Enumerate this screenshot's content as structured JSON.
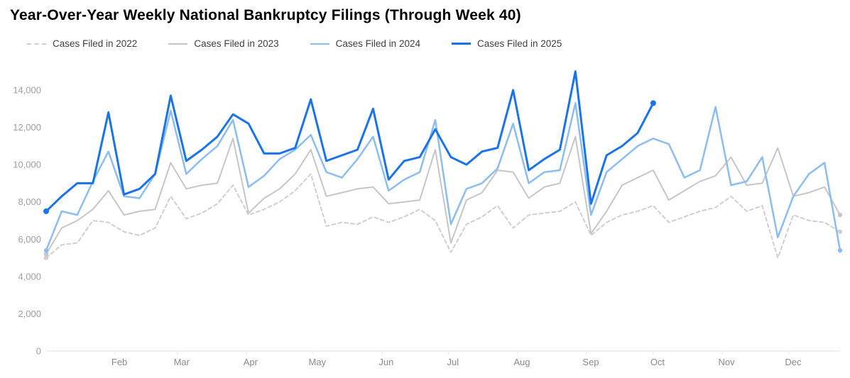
{
  "title": "Year-Over-Year Weekly National Bankruptcy Filings (Through Week 40)",
  "chart_data": {
    "type": "line",
    "title": "Year-Over-Year Weekly National Bankruptcy Filings (Through Week 40)",
    "x_unit": "week_of_year",
    "weeks": 52,
    "legend_position": "top-left",
    "grid": "baseline-only",
    "x_axis": {
      "month_labels": [
        "Feb",
        "Mar",
        "Apr",
        "May",
        "Jun",
        "Jul",
        "Aug",
        "Sep",
        "Oct",
        "Nov",
        "Dec"
      ]
    },
    "y_axis": {
      "ticks": [
        0,
        2000,
        4000,
        6000,
        8000,
        10000,
        12000,
        14000
      ],
      "tick_labels": [
        "0",
        "2,000",
        "4,000",
        "6,000",
        "8,000",
        "10,000",
        "12,000",
        "14,000"
      ]
    },
    "ylim": [
      0,
      15500
    ],
    "series": [
      {
        "name": "Cases Filed in 2022",
        "year": 2022,
        "color": "#cfcfcf",
        "dashed": true,
        "stroke_width": 2,
        "values": [
          5000,
          5700,
          5800,
          7000,
          6900,
          6400,
          6200,
          6600,
          8300,
          7100,
          7400,
          7900,
          8900,
          7300,
          7600,
          8000,
          8600,
          9500,
          6700,
          6900,
          6800,
          7200,
          6900,
          7200,
          7600,
          7000,
          5300,
          6800,
          7200,
          7800,
          6600,
          7300,
          7400,
          7500,
          8000,
          6200,
          6900,
          7300,
          7500,
          7800,
          6900,
          7200,
          7500,
          7700,
          8300,
          7500,
          7800,
          5000,
          7300,
          7000,
          6900,
          6400
        ]
      },
      {
        "name": "Cases Filed in 2023",
        "year": 2023,
        "color": "#c6c6c6",
        "dashed": false,
        "stroke_width": 2,
        "values": [
          5200,
          6600,
          7000,
          7600,
          8600,
          7300,
          7500,
          7600,
          10100,
          8700,
          8900,
          9000,
          11400,
          7400,
          8200,
          8700,
          9500,
          10800,
          8300,
          8500,
          8700,
          8800,
          7900,
          8000,
          8100,
          10800,
          5800,
          8100,
          8500,
          9700,
          9600,
          8200,
          8800,
          9000,
          11500,
          6300,
          7500,
          8900,
          9300,
          9700,
          8100,
          8600,
          9100,
          9400,
          10400,
          8900,
          9000,
          10900,
          8300,
          8500,
          8800,
          7300
        ]
      },
      {
        "name": "Cases Filed in 2024",
        "year": 2024,
        "color": "#8bbdf0",
        "dashed": false,
        "stroke_width": 2.5,
        "values": [
          5400,
          7500,
          7300,
          9100,
          10700,
          8300,
          8200,
          9500,
          12900,
          9500,
          10300,
          11000,
          12400,
          8800,
          9400,
          10300,
          10800,
          11600,
          9600,
          9300,
          10300,
          11500,
          8600,
          9200,
          9600,
          12400,
          6800,
          8700,
          9000,
          9800,
          12200,
          9000,
          9600,
          9700,
          13300,
          7300,
          9600,
          10300,
          11000,
          11400,
          11100,
          9300,
          9700,
          13100,
          8900,
          9100,
          10400,
          6100,
          8300,
          9500,
          10100,
          5400
        ]
      },
      {
        "name": "Cases Filed in 2025",
        "year": 2025,
        "color": "#1a73e8",
        "dashed": false,
        "stroke_width": 3,
        "values": [
          7500,
          8300,
          9000,
          9000,
          12800,
          8400,
          8700,
          9500,
          13700,
          10200,
          10800,
          11500,
          12700,
          12200,
          10600,
          10600,
          10900,
          13500,
          10200,
          10500,
          10800,
          13000,
          9200,
          10200,
          10400,
          11900,
          10400,
          10000,
          10700,
          10900,
          14000,
          9700,
          10300,
          10800,
          15000,
          7900,
          10500,
          11000,
          11700,
          13300
        ]
      }
    ]
  }
}
